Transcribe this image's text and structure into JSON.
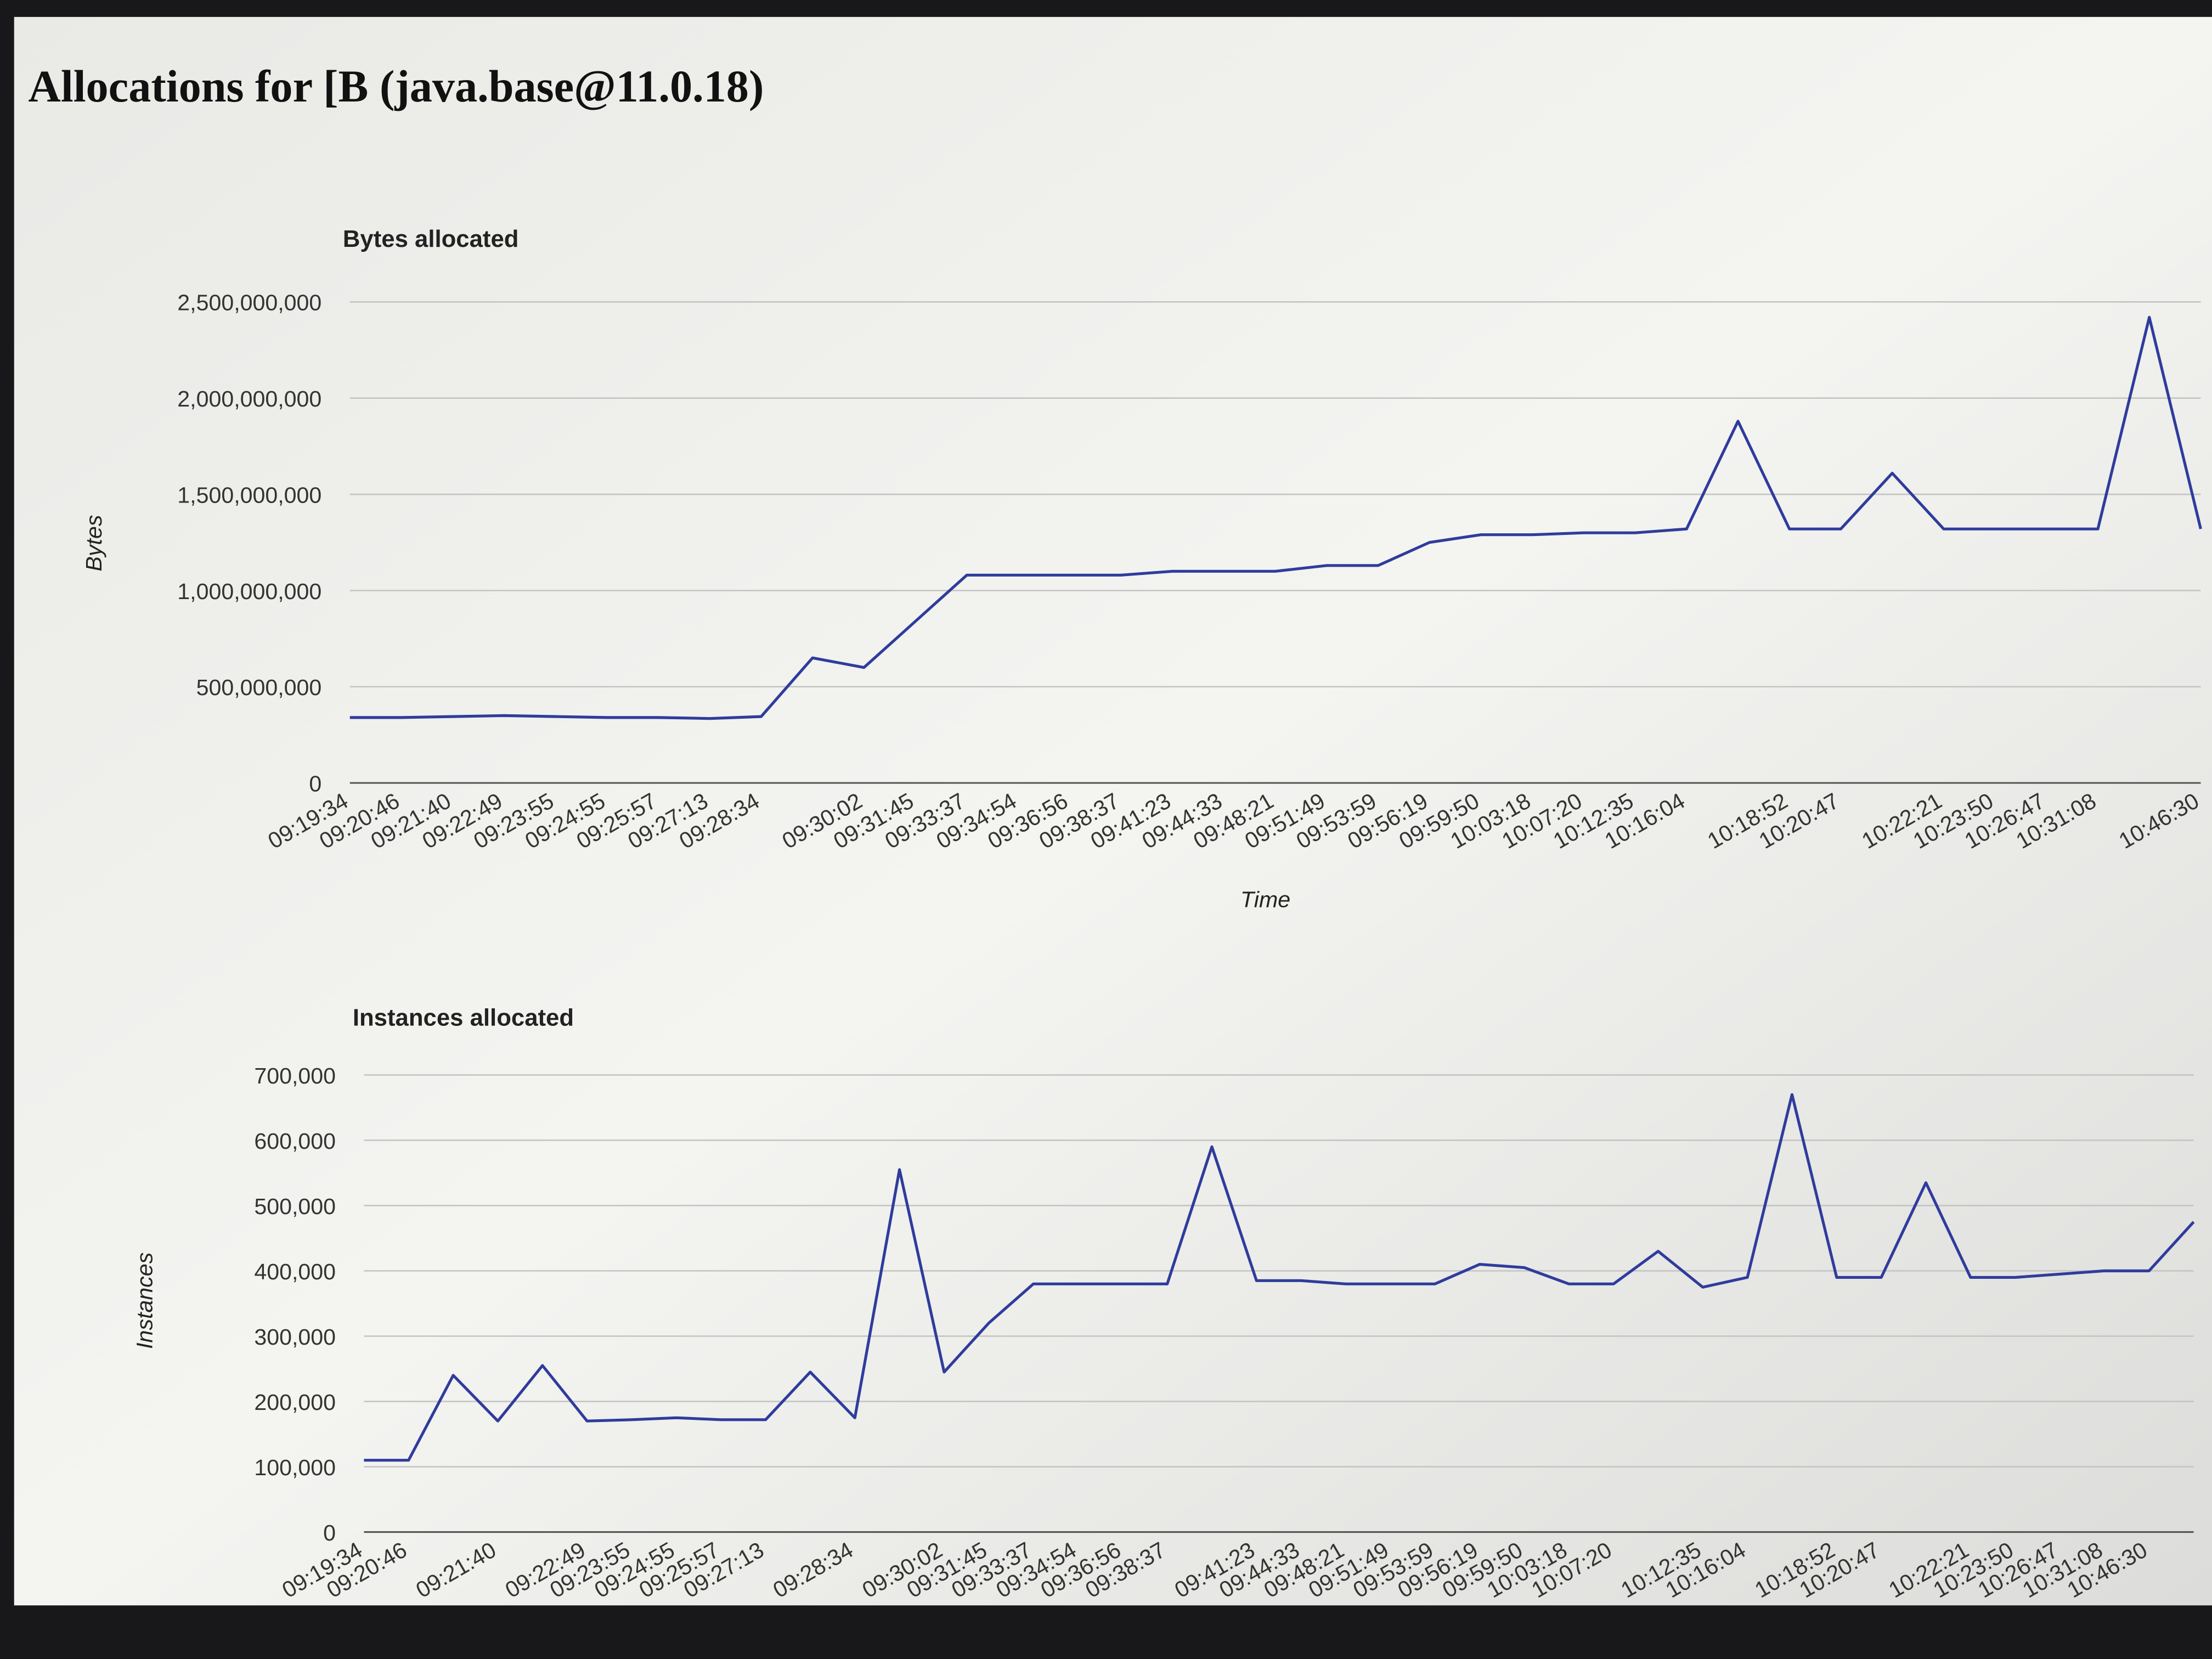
{
  "page": {
    "title": "Allocations for [B (java.base@11.0.18)"
  },
  "chart_data": [
    {
      "type": "line",
      "title": "Bytes allocated",
      "y_label": "Bytes",
      "x_label": "Time",
      "color": "#2f3c9c",
      "grid": true,
      "categories": [
        "09:19:34",
        "09:20:46",
        "09:21:40",
        "09:22:49",
        "09:23:55",
        "09:24:55",
        "09:25:57",
        "09:27:13",
        "09:28:34",
        null,
        "09:30:02",
        "09:31:45",
        "09:33:37",
        "09:34:54",
        "09:36:56",
        "09:38:37",
        "09:41:23",
        "09:44:33",
        "09:48:21",
        "09:51:49",
        "09:53:59",
        "09:56:19",
        "09:59:50",
        "10:03:18",
        "10:07:20",
        "10:12:35",
        "10:16:04",
        null,
        "10:18:52",
        "10:20:47",
        null,
        "10:22:21",
        "10:23:50",
        "10:26:47",
        "10:31:08",
        null,
        "10:46:30"
      ],
      "values": [
        340000000,
        340000000,
        345000000,
        350000000,
        345000000,
        340000000,
        340000000,
        335000000,
        345000000,
        650000000,
        600000000,
        840000000,
        1080000000,
        1080000000,
        1080000000,
        1080000000,
        1100000000,
        1100000000,
        1100000000,
        1130000000,
        1130000000,
        1250000000,
        1290000000,
        1290000000,
        1300000000,
        1300000000,
        1320000000,
        1880000000,
        1320000000,
        1320000000,
        1610000000,
        1320000000,
        1320000000,
        1320000000,
        1320000000,
        2420000000,
        1320000000
      ],
      "ylim": [
        0,
        2500000000
      ],
      "yticks": [
        0,
        {
          "value": 500000000,
          "label": "500,000,000"
        },
        {
          "value": 1000000000,
          "label": "1,000,000,000"
        },
        {
          "value": 1500000000,
          "label": "1,500,000,000"
        },
        {
          "value": 2000000000,
          "label": "2,000,000,000"
        },
        {
          "value": 2500000000,
          "label": "2,500,000,000"
        }
      ]
    },
    {
      "type": "line",
      "title": "Instances allocated",
      "y_label": "Instances",
      "color": "#2f3c9c",
      "grid": true,
      "categories": [
        "09:19:34",
        "09:20:46",
        null,
        "09:21:40",
        null,
        "09:22:49",
        "09:23:55",
        "09:24:55",
        "09:25:57",
        "09:27:13",
        null,
        "09:28:34",
        null,
        "09:30:02",
        "09:31:45",
        "09:33:37",
        "09:34:54",
        "09:36:56",
        "09:38:37",
        null,
        "09:41:23",
        "09:44:33",
        "09:48:21",
        "09:51:49",
        "09:53:59",
        "09:56:19",
        "09:59:50",
        "10:03:18",
        "10:07:20",
        null,
        "10:12:35",
        "10:16:04",
        null,
        "10:18:52",
        "10:20:47",
        null,
        "10:22:21",
        "10:23:50",
        "10:26:47",
        "10:31:08",
        "10:46:30",
        null
      ],
      "values": [
        110000,
        110000,
        240000,
        170000,
        255000,
        170000,
        172000,
        175000,
        172000,
        172000,
        245000,
        175000,
        555000,
        245000,
        320000,
        380000,
        380000,
        380000,
        380000,
        590000,
        385000,
        385000,
        380000,
        380000,
        380000,
        410000,
        405000,
        380000,
        380000,
        430000,
        375000,
        390000,
        670000,
        390000,
        390000,
        535000,
        390000,
        390000,
        395000,
        400000,
        400000,
        475000
      ],
      "ylim": [
        0,
        700000
      ],
      "yticks": [
        0,
        {
          "value": 100000,
          "label": "100,000"
        },
        {
          "value": 200000,
          "label": "200,000"
        },
        {
          "value": 300000,
          "label": "300,000"
        },
        {
          "value": 400000,
          "label": "400,000"
        },
        {
          "value": 500000,
          "label": "500,000"
        },
        {
          "value": 600000,
          "label": "600,000"
        },
        {
          "value": 700000,
          "label": "700,000"
        }
      ]
    }
  ]
}
